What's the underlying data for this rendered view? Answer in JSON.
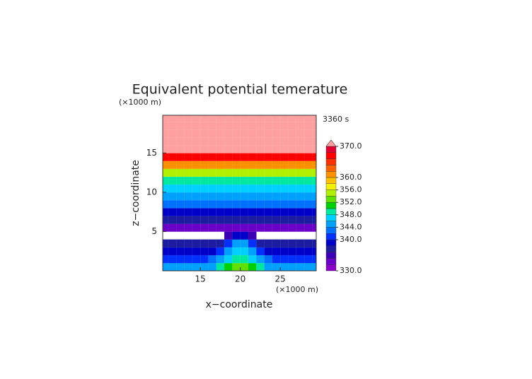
{
  "chart_data": {
    "type": "contour",
    "title": "Equivalent potential temerature",
    "y_unit": "(×1000 m)",
    "x_unit": "(×1000 m)",
    "time_label": "3360 s",
    "xlabel": "x−coordinate",
    "ylabel": "z−coordinate",
    "xlim": [
      10.3,
      29.5
    ],
    "ylim": [
      0,
      19.8
    ],
    "xticks": [
      15,
      20,
      25
    ],
    "yticks": [
      5,
      10,
      15
    ],
    "field": {
      "x": [
        10.5,
        11.5,
        12.5,
        13.5,
        14.5,
        15.5,
        16.5,
        17.5,
        18.5,
        19.5,
        20.5,
        21.5,
        22.5,
        23.5,
        24.5,
        25.5,
        26.5,
        27.5,
        28.5,
        29.5
      ],
      "z": [
        0.5,
        1.5,
        2.5,
        3.5,
        4.5,
        5.5,
        6.5,
        7.5,
        8.5,
        9.5,
        10.5,
        11.5,
        12.5,
        13.5,
        14.5,
        15.5,
        16.5,
        17.5,
        18.5,
        19.5
      ],
      "values": [
        [
          345,
          345,
          345,
          345,
          345,
          345,
          345,
          348,
          350,
          353,
          353,
          350,
          348,
          345,
          345,
          345,
          345,
          345,
          345,
          345
        ],
        [
          341,
          341,
          341,
          341,
          341,
          341,
          343,
          345,
          347,
          348,
          348,
          347,
          345,
          343,
          341,
          341,
          341,
          341,
          341,
          341
        ],
        [
          338,
          338,
          338,
          338,
          338,
          338,
          338,
          341,
          344,
          346,
          346,
          344,
          341,
          338,
          338,
          338,
          338,
          338,
          338,
          338
        ],
        [
          336,
          336,
          336,
          336,
          336,
          336,
          336,
          336,
          340,
          344,
          344,
          340,
          336,
          336,
          336,
          336,
          336,
          336,
          336,
          336
        ],
        [
          null,
          null,
          null,
          null,
          null,
          null,
          null,
          null,
          334,
          338,
          338,
          334,
          null,
          null,
          null,
          null,
          null,
          null,
          null,
          null
        ],
        [
          333,
          333,
          333,
          333,
          333,
          333,
          333,
          333,
          333,
          333,
          333,
          333,
          333,
          333,
          333,
          333,
          333,
          333,
          333,
          333
        ],
        [
          336,
          336,
          336,
          336,
          336,
          336,
          336,
          336,
          336,
          336,
          336,
          336,
          336,
          336,
          336,
          336,
          336,
          336,
          336,
          336
        ],
        [
          339,
          339,
          339,
          339,
          339,
          339,
          339,
          339,
          339,
          339,
          339,
          339,
          339,
          339,
          339,
          339,
          339,
          339,
          339,
          339
        ],
        [
          342,
          342,
          342,
          342,
          342,
          342,
          342,
          342,
          342,
          342,
          342,
          342,
          342,
          342,
          342,
          342,
          342,
          342,
          342,
          342
        ],
        [
          344,
          344,
          344,
          344,
          344,
          344,
          344,
          344,
          344,
          344,
          344,
          344,
          344,
          344,
          344,
          344,
          344,
          344,
          344,
          344
        ],
        [
          346,
          346,
          346,
          346,
          346,
          346,
          346,
          346,
          346,
          346,
          346,
          346,
          346,
          346,
          346,
          346,
          346,
          346,
          346,
          346
        ],
        [
          349,
          349,
          349,
          349,
          349,
          349,
          349,
          349,
          349,
          349,
          349,
          349,
          349,
          349,
          349,
          349,
          349,
          349,
          349,
          349
        ],
        [
          354,
          354,
          354,
          354,
          354,
          354,
          354,
          354,
          354,
          354,
          354,
          354,
          354,
          354,
          354,
          354,
          354,
          354,
          354,
          354
        ],
        [
          360,
          360,
          360,
          360,
          360,
          360,
          360,
          360,
          360,
          360,
          360,
          360,
          360,
          360,
          360,
          360,
          360,
          360,
          360,
          360
        ],
        [
          366,
          366,
          366,
          366,
          366,
          366,
          366,
          366,
          366,
          366,
          366,
          366,
          366,
          366,
          366,
          366,
          366,
          366,
          366,
          366
        ],
        [
          372,
          372,
          372,
          372,
          372,
          372,
          372,
          372,
          372,
          372,
          372,
          372,
          372,
          372,
          372,
          372,
          372,
          372,
          372,
          372
        ],
        [
          372,
          372,
          372,
          372,
          372,
          372,
          372,
          372,
          372,
          372,
          372,
          372,
          372,
          372,
          372,
          372,
          372,
          372,
          372,
          372
        ],
        [
          372,
          372,
          372,
          372,
          372,
          372,
          372,
          372,
          372,
          372,
          372,
          372,
          372,
          372,
          372,
          372,
          372,
          372,
          372,
          372
        ],
        [
          372,
          372,
          372,
          372,
          372,
          372,
          372,
          372,
          372,
          372,
          372,
          372,
          372,
          372,
          372,
          372,
          372,
          372,
          372,
          372
        ],
        [
          372,
          372,
          372,
          372,
          372,
          372,
          372,
          372,
          372,
          372,
          372,
          372,
          372,
          372,
          372,
          372,
          372,
          372,
          372,
          372
        ]
      ]
    },
    "colorbar": {
      "lim": [
        330,
        370
      ],
      "colors": [
        "#8a00c8",
        "#6a00c8",
        "#3c00b4",
        "#1c1ca0",
        "#0000c8",
        "#0030ff",
        "#0070ff",
        "#00a0ff",
        "#00d0ff",
        "#00e8a0",
        "#00d000",
        "#60e000",
        "#b0f000",
        "#f0f000",
        "#ffc000",
        "#ff9000",
        "#ff6000",
        "#ff3000",
        "#ff0000",
        "#e00030"
      ],
      "extend_color": "#ffa0a0",
      "ticks": [
        {
          "value": 370,
          "label": "370.0"
        },
        {
          "value": 360,
          "label": "360.0"
        },
        {
          "value": 356,
          "label": "356.0"
        },
        {
          "value": 352,
          "label": "352.0"
        },
        {
          "value": 348,
          "label": "348.0"
        },
        {
          "value": 344,
          "label": "344.0"
        },
        {
          "value": 340,
          "label": "340.0"
        },
        {
          "value": 330,
          "label": "330.0"
        }
      ]
    }
  }
}
